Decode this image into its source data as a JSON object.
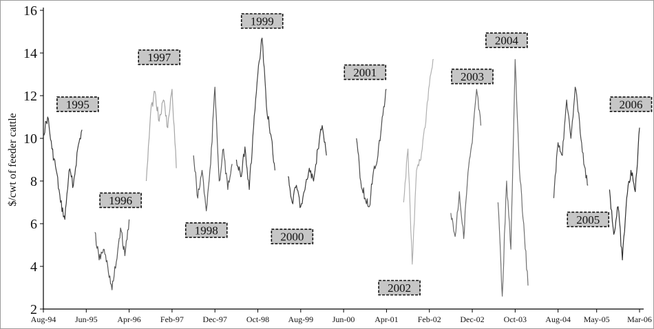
{
  "chart_data": {
    "type": "line",
    "title": "",
    "xlabel": "",
    "ylabel": "$/cwt of feeder cattle",
    "ylim": [
      2,
      16
    ],
    "yticks": [
      "2",
      "4",
      "6",
      "8",
      "10",
      "12",
      "14",
      "16"
    ],
    "xticks": [
      "Aug-94",
      "Jun-95",
      "Apr-96",
      "Feb-97",
      "Dec-97",
      "Oct-98",
      "Aug-99",
      "Jun-00",
      "Apr-01",
      "Feb-02",
      "Dec-02",
      "Oct-03",
      "Aug-04",
      "May-05",
      "Mar-06"
    ],
    "xtick_dates": [
      "1994-08",
      "1995-06",
      "1996-04",
      "1997-02",
      "1997-12",
      "1998-10",
      "1999-08",
      "2000-06",
      "2001-04",
      "2002-02",
      "2002-12",
      "2003-10",
      "2004-08",
      "2005-05",
      "2006-03"
    ],
    "grid": false,
    "series": [
      {
        "name": "1995",
        "color": "#3a3a3a",
        "x": [
          "1994-08",
          "1994-09",
          "1994-10",
          "1994-11",
          "1994-12",
          "1995-01",
          "1995-02",
          "1995-03",
          "1995-04",
          "1995-05"
        ],
        "y": [
          10.2,
          11.0,
          9.5,
          8.5,
          7.0,
          6.2,
          8.5,
          7.8,
          9.5,
          10.4
        ]
      },
      {
        "name": "1996",
        "color": "#555555",
        "x": [
          "1995-08",
          "1995-09",
          "1995-10",
          "1995-11",
          "1995-12",
          "1996-01",
          "1996-02",
          "1996-03",
          "1996-04"
        ],
        "y": [
          5.6,
          4.3,
          4.8,
          4.0,
          2.9,
          4.2,
          5.8,
          4.5,
          6.2
        ]
      },
      {
        "name": "1997",
        "color": "#a5a5a5",
        "x": [
          "1996-08",
          "1996-09",
          "1996-10",
          "1996-11",
          "1996-12",
          "1997-01",
          "1997-02",
          "1997-03"
        ],
        "y": [
          8.0,
          11.2,
          12.2,
          10.8,
          11.8,
          10.5,
          12.3,
          8.6
        ]
      },
      {
        "name": "1998",
        "color": "#5a5a5a",
        "x": [
          "1997-07",
          "1997-08",
          "1997-09",
          "1997-10",
          "1997-11",
          "1997-12",
          "1998-01",
          "1998-02",
          "1998-03",
          "1998-04"
        ],
        "y": [
          9.2,
          7.2,
          8.5,
          6.6,
          8.8,
          12.4,
          8.0,
          9.5,
          7.6,
          8.8
        ]
      },
      {
        "name": "1999",
        "color": "#404040",
        "x": [
          "1998-05",
          "1998-06",
          "1998-07",
          "1998-08",
          "1998-09",
          "1998-10",
          "1998-11",
          "1998-12",
          "1999-01",
          "1999-02"
        ],
        "y": [
          9.0,
          8.2,
          9.6,
          7.6,
          10.5,
          13.0,
          14.7,
          11.5,
          10.2,
          8.5
        ]
      },
      {
        "name": "2000",
        "color": "#3a3a3a",
        "x": [
          "1999-05",
          "1999-06",
          "1999-07",
          "1999-08",
          "1999-09",
          "1999-10",
          "1999-11",
          "1999-12",
          "2000-01",
          "2000-02"
        ],
        "y": [
          8.2,
          7.0,
          7.8,
          6.8,
          7.6,
          8.6,
          8.0,
          9.5,
          10.6,
          9.2
        ]
      },
      {
        "name": "2001",
        "color": "#4a4a4a",
        "x": [
          "2000-09",
          "2000-10",
          "2000-11",
          "2000-12",
          "2001-01",
          "2001-02",
          "2001-03",
          "2001-04"
        ],
        "y": [
          10.0,
          8.0,
          7.2,
          6.8,
          8.5,
          9.2,
          11.0,
          12.3
        ]
      },
      {
        "name": "2002",
        "color": "#b0b0b0",
        "x": [
          "2001-08",
          "2001-09",
          "2001-10",
          "2001-11",
          "2001-12",
          "2002-01",
          "2002-02",
          "2002-03"
        ],
        "y": [
          7.0,
          9.5,
          4.1,
          8.5,
          9.0,
          10.5,
          12.5,
          13.7
        ]
      },
      {
        "name": "2003",
        "color": "#6a6a6a",
        "x": [
          "2002-07",
          "2002-08",
          "2002-09",
          "2002-10",
          "2002-11",
          "2002-12",
          "2003-01",
          "2003-02"
        ],
        "y": [
          6.5,
          5.4,
          7.5,
          5.3,
          8.4,
          9.8,
          12.3,
          10.6
        ]
      },
      {
        "name": "2004",
        "color": "#6f6f6f",
        "x": [
          "2003-06",
          "2003-07",
          "2003-08",
          "2003-09",
          "2003-10",
          "2003-11",
          "2003-12",
          "2004-01"
        ],
        "y": [
          7.0,
          2.6,
          8.0,
          4.8,
          13.7,
          8.5,
          6.0,
          3.1
        ]
      },
      {
        "name": "2005",
        "color": "#4a4a4a",
        "x": [
          "2004-07",
          "2004-08",
          "2004-09",
          "2004-10",
          "2004-11",
          "2004-12",
          "2005-01",
          "2005-02",
          "2005-03"
        ],
        "y": [
          7.2,
          9.8,
          9.2,
          11.8,
          10.0,
          12.4,
          10.8,
          8.8,
          7.8
        ]
      },
      {
        "name": "2006",
        "color": "#2e2e2e",
        "x": [
          "2005-08",
          "2005-09",
          "2005-10",
          "2005-11",
          "2005-12",
          "2006-01",
          "2006-02",
          "2006-03"
        ],
        "y": [
          7.6,
          5.5,
          6.8,
          4.3,
          7.2,
          8.5,
          7.5,
          10.5
        ]
      }
    ],
    "annotations": [
      {
        "text": "1995",
        "x": "1995-04",
        "y": 11.6
      },
      {
        "text": "1996",
        "x": "1996-02",
        "y": 7.1
      },
      {
        "text": "1997",
        "x": "1996-11",
        "y": 13.8
      },
      {
        "text": "1998",
        "x": "1997-10",
        "y": 5.7
      },
      {
        "text": "1999",
        "x": "1998-11",
        "y": 15.5
      },
      {
        "text": "2000",
        "x": "1999-06",
        "y": 5.4
      },
      {
        "text": "2001",
        "x": "2000-11",
        "y": 13.1
      },
      {
        "text": "2002",
        "x": "2001-07",
        "y": 3.0
      },
      {
        "text": "2003",
        "x": "2002-12",
        "y": 12.9
      },
      {
        "text": "2004",
        "x": "2003-08",
        "y": 14.6
      },
      {
        "text": "2005",
        "x": "2005-03",
        "y": 6.2
      },
      {
        "text": "2006",
        "x": "2006-01",
        "y": 11.6
      }
    ]
  }
}
